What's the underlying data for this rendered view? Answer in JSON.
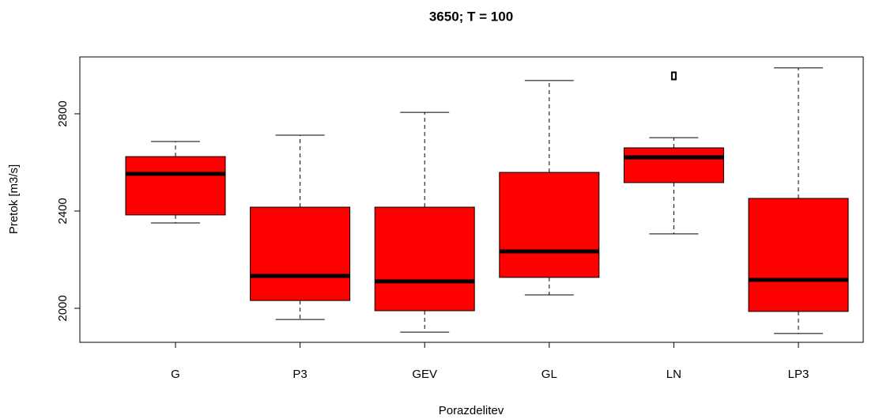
{
  "chart_data": {
    "type": "box",
    "title": "3650; T = 100",
    "x_label": "Porazdelitev",
    "y_label": "Pretok [m3/s]",
    "categories": [
      "G",
      "P3",
      "GEV",
      "GL",
      "LN",
      "LP3"
    ],
    "color": "#ff0000",
    "boxes": [
      {
        "min": 2351,
        "q1": 2384,
        "median": 2553,
        "q3": 2624,
        "max": 2686
      },
      {
        "min": 1954,
        "q1": 2032,
        "median": 2133,
        "q3": 2416,
        "max": 2712
      },
      {
        "min": 1902,
        "q1": 1990,
        "median": 2111,
        "q3": 2416,
        "max": 2806
      },
      {
        "min": 2055,
        "q1": 2127,
        "median": 2234,
        "q3": 2559,
        "max": 2937
      },
      {
        "min": 2306,
        "q1": 2517,
        "median": 2621,
        "q3": 2660,
        "max": 2702,
        "outliers": [
          2956
        ]
      },
      {
        "min": 1896,
        "q1": 1987,
        "median": 2117,
        "q3": 2452,
        "max": 2989
      }
    ],
    "ylim": [
      1860,
      3034
    ],
    "yticks": [
      2000,
      2400,
      2800
    ]
  }
}
